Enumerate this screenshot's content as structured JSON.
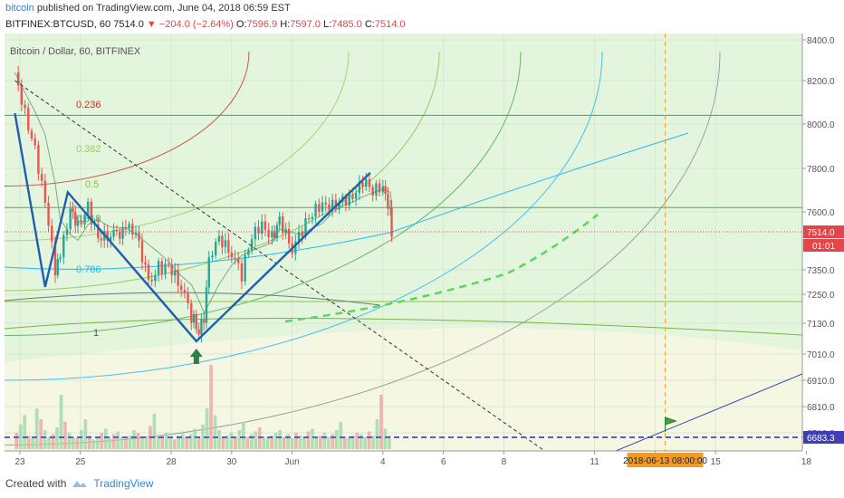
{
  "header": {
    "brand": "bitcoin",
    "published": "published on TradingView.com, June 04, 2018 06:59 EST",
    "symbol": "BITFINEX:BTCUSD, 60",
    "last": "7514.0",
    "change": "−204.0 (−2.64%)",
    "o_label": "O:",
    "o_val": "7596.9",
    "h_label": "H:",
    "h_val": "7597.0",
    "l_label": "L:",
    "l_val": "7485.0",
    "c_label": "C:",
    "c_val": "7514.0"
  },
  "footer": {
    "created_with": "Created with",
    "tradingview": "TradingView"
  },
  "colors": {
    "up": "#26a69a",
    "down": "#ef5350",
    "pattern": "#1f5fb0",
    "price_line": "#e0464a",
    "bg_green": "#e3f5dc",
    "bg_yellow": "#f5f7e3"
  },
  "chart_data": {
    "type": "candlestick",
    "title": "Bitcoin / Dollar, 60, BITFINEX",
    "y_axis_labels": [
      "8400.0",
      "8200.0",
      "8000.0",
      "7800.0",
      "7600.0",
      "7350.0",
      "7250.0",
      "7130.0",
      "7010.0",
      "6910.0",
      "6810.0",
      "6710.0"
    ],
    "x_axis_labels": [
      "23",
      "25",
      "28",
      "30",
      "Jun",
      "4",
      "6",
      "8",
      "11",
      "13",
      "15",
      "18"
    ],
    "ylim": [
      6650,
      8440
    ],
    "price_tag": "7514.0",
    "countdown": "01:01",
    "level_tag": "6683.3",
    "date_tag": "2018-06-13 08:00:00",
    "fib_labels": [
      "0.236",
      "0.382",
      "0.5",
      "0.618",
      "0.786",
      "1"
    ],
    "close_path": [
      [
        "May 22 20:00",
        8240
      ],
      [
        "May 23 04:00",
        8050
      ],
      [
        "May 23 12:00",
        7880
      ],
      [
        "May 23 20:00",
        7640
      ],
      [
        "May 24 04:00",
        7350
      ],
      [
        "May 24 08:00",
        7400
      ],
      [
        "May 24 16:00",
        7620
      ],
      [
        "May 24 22:00",
        7540
      ],
      [
        "May 25 06:00",
        7620
      ],
      [
        "May 25 14:00",
        7480
      ],
      [
        "May 26 00:00",
        7500
      ],
      [
        "May 26 12:00",
        7520
      ],
      [
        "May 26 20:00",
        7520
      ],
      [
        "May 27 06:00",
        7300
      ],
      [
        "May 27 14:00",
        7360
      ],
      [
        "May 27 22:00",
        7360
      ],
      [
        "May 28 08:00",
        7280
      ],
      [
        "May 28 16:00",
        7160
      ],
      [
        "May 28 22:00",
        7100
      ],
      [
        "May 29 02:00",
        7160
      ],
      [
        "May 29 06:00",
        7420
      ],
      [
        "May 29 14:00",
        7480
      ],
      [
        "May 30 00:00",
        7420
      ],
      [
        "May 30 08:00",
        7330
      ],
      [
        "May 30 16:00",
        7500
      ],
      [
        "May 31 00:00",
        7550
      ],
      [
        "May 31 08:00",
        7490
      ],
      [
        "May 31 14:00",
        7560
      ],
      [
        "Jun 01 00:00",
        7440
      ],
      [
        "Jun 01 08:00",
        7520
      ],
      [
        "Jun 01 16:00",
        7600
      ],
      [
        "Jun 02 00:00",
        7640
      ],
      [
        "Jun 02 08:00",
        7630
      ],
      [
        "Jun 02 16:00",
        7650
      ],
      [
        "Jun 03 00:00",
        7660
      ],
      [
        "Jun 03 08:00",
        7740
      ],
      [
        "Jun 03 16:00",
        7700
      ],
      [
        "Jun 04 00:00",
        7720
      ],
      [
        "Jun 04 06:00",
        7600
      ],
      [
        "Jun 04 07:00",
        7514
      ]
    ],
    "pattern": [
      [
        "May 22 20:00",
        8050
      ],
      [
        "May 23 20:00",
        7280
      ],
      [
        "May 24 14:00",
        7690
      ],
      [
        "May 28 20:00",
        7060
      ],
      [
        "Jun 03 14:00",
        7780
      ]
    ]
  }
}
